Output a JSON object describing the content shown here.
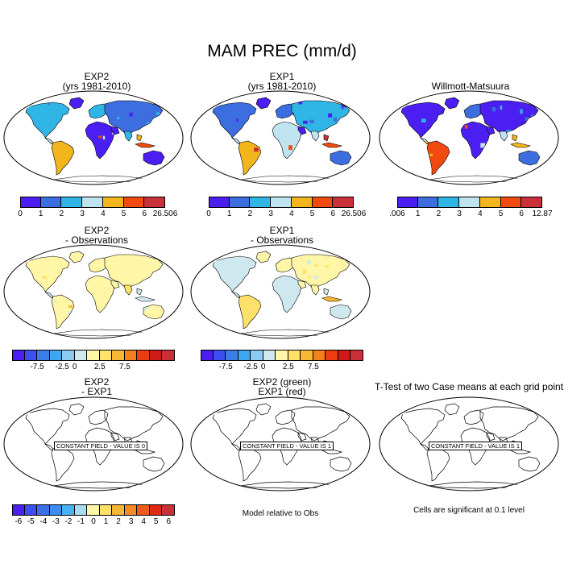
{
  "page_title": "MAM PREC (mm/d)",
  "panels": {
    "p1": {
      "title1": "EXP2",
      "title2": "(yrs 1981-2010)"
    },
    "p2": {
      "title1": "EXP1",
      "title2": "(yrs 1981-2010)"
    },
    "p3": {
      "title1": "Willmott-Matsuura",
      "title2": ""
    },
    "p4": {
      "title1": "EXP2",
      "title2": "- Observations"
    },
    "p5": {
      "title1": "EXP1",
      "title2": "- Observations"
    },
    "p6": {
      "title1": "EXP2",
      "title2": "- EXP1",
      "field_note": "CONSTANT FIELD - VALUE IS 0"
    },
    "p7": {
      "title1": "EXP2 (green)",
      "title2": "EXP1 (red)",
      "field_note": "CONSTANT FIELD - VALUE IS 1"
    },
    "p8": {
      "title1": "T-Test of two Case means at each grid point",
      "title2": "",
      "field_note": "CONSTANT FIELD - VALUE IS 1"
    }
  },
  "notes": {
    "model_relative": "Model relative to Obs",
    "significance": "Cells are significant at 0.1 level"
  },
  "colorbars": {
    "precip_model": {
      "colors": [
        "#4b1ef2",
        "#3c6ee0",
        "#2fb6e6",
        "#bfe3ef",
        "#f3b51c",
        "#f04a10",
        "#c9303a"
      ],
      "labels": [
        "0",
        "1",
        "2",
        "3",
        "4",
        "5",
        "6",
        "26.506"
      ]
    },
    "precip_obs": {
      "colors": [
        "#4b1ef2",
        "#3c6ee0",
        "#2fb6e6",
        "#bfe3ef",
        "#f3b51c",
        "#f04a10",
        "#c9303a"
      ],
      "labels": [
        ".006",
        "1",
        "2",
        "3",
        "4",
        "5",
        "6",
        "12.87"
      ]
    },
    "diff_obs": {
      "colors": [
        "#4b1ef2",
        "#3d4ff0",
        "#3c7ee6",
        "#3fa6f0",
        "#8bcaf2",
        "#cfe8ef",
        "#fff6a8",
        "#fde16a",
        "#f8b733",
        "#f47f1d",
        "#ea3d12",
        "#d01a1a",
        "#c9303a"
      ],
      "labels": [
        "-7.5",
        "-2.5",
        "0",
        "2.5",
        "7.5"
      ],
      "label_edges": [
        2,
        4,
        5,
        7,
        9
      ]
    },
    "diff_exp": {
      "colors": [
        "#4b1ef2",
        "#3d4ff0",
        "#3c6ee6",
        "#3c8ef0",
        "#48b2f0",
        "#a8dcf0",
        "#fff6a8",
        "#fde16a",
        "#f8b733",
        "#f48a22",
        "#ef5b1a",
        "#e02a14",
        "#c9303a"
      ],
      "labels": [
        "-6",
        "-5",
        "-4",
        "-3",
        "-2",
        "-1",
        "0",
        "1",
        "2",
        "3",
        "4",
        "5",
        "6"
      ]
    }
  }
}
